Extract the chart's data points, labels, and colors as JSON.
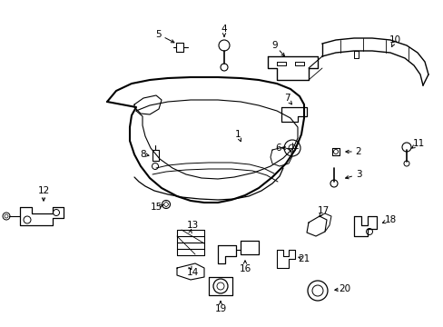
{
  "background_color": "#ffffff",
  "fig_width": 4.89,
  "fig_height": 3.6,
  "dpi": 100,
  "line_color": "#000000",
  "text_color": "#000000",
  "font_size": 7.5,
  "parts": [
    1,
    2,
    3,
    4,
    5,
    6,
    7,
    8,
    9,
    10,
    11,
    12,
    13,
    14,
    15,
    16,
    17,
    18,
    19,
    20,
    21
  ]
}
